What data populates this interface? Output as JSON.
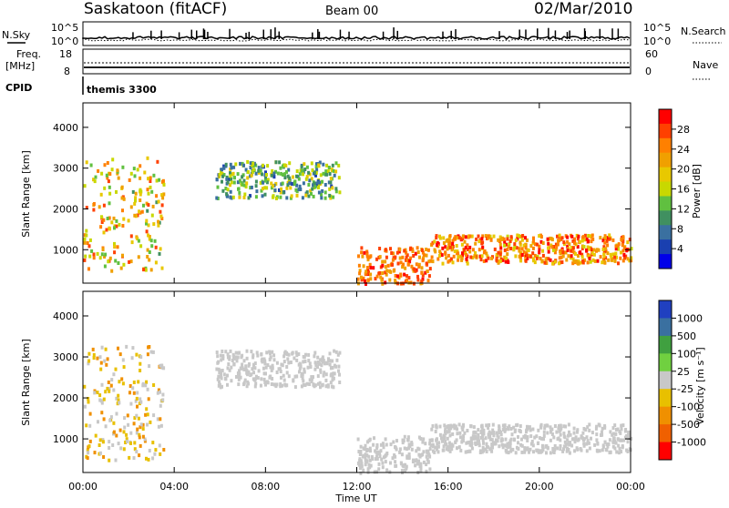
{
  "header": {
    "station": "Saskatoon (fitACF)",
    "beam": "Beam 00",
    "date": "02/Mar/2010"
  },
  "strip": {
    "nsky_label": "N.Sky",
    "nsearch_label": "N.Search",
    "noise_ticks_left": [
      "10^5",
      "10^0"
    ],
    "noise_ticks_right": [
      "10^5",
      "10^0"
    ],
    "freq_label_1": "Freq.",
    "freq_label_2": "[MHz]",
    "freq_ticks": [
      "18",
      "8"
    ],
    "nave_ticks": [
      "60",
      "0"
    ],
    "nave_label": "Nave",
    "cpid_label": "CPID",
    "cpid_value": "themis 3300"
  },
  "axes": {
    "xlabel": "Time UT",
    "xticks": [
      "00:00",
      "04:00",
      "08:00",
      "12:00",
      "16:00",
      "20:00",
      "00:00"
    ],
    "ylabel": "Slant Range [km]",
    "yticks": [
      "4000",
      "3000",
      "2000",
      "1000"
    ]
  },
  "power_scale": {
    "label": "Power [dB]",
    "ticks": [
      "28",
      "24",
      "20",
      "16",
      "12",
      "8",
      "4"
    ],
    "colors": [
      "#ff0000",
      "#ff4000",
      "#ff8000",
      "#f0a000",
      "#e8c800",
      "#c8d800",
      "#60c040",
      "#409060",
      "#3a70a0",
      "#1a40b0",
      "#0000e8"
    ]
  },
  "velocity_scale": {
    "label": "Velocity [m s⁻¹]",
    "ticks": [
      "1000",
      "500",
      "100",
      "25",
      "-25",
      "-100",
      "-500",
      "-1000"
    ],
    "colors": [
      "#2040c0",
      "#3a70a0",
      "#40a040",
      "#70d040",
      "#c8c8c8",
      "#e8c000",
      "#f09000",
      "#f06000",
      "#ff0000"
    ]
  },
  "chart_data": [
    {
      "type": "heatmap",
      "title": "Power",
      "ylabel": "Slant Range [km]",
      "xlabel": "Time UT",
      "xlim": [
        0,
        24
      ],
      "ylim": [
        180,
        4600
      ],
      "colorbar": {
        "label": "Power [dB]",
        "range": [
          0,
          30
        ],
        "ticks": [
          4,
          8,
          12,
          16,
          20,
          24,
          28
        ]
      },
      "regions": [
        {
          "t": [
            0,
            3.5
          ],
          "range_km": [
            500,
            3300
          ],
          "power_db": [
            10,
            28
          ]
        },
        {
          "t": [
            5.8,
            11.2
          ],
          "range_km": [
            2300,
            3200
          ],
          "power_db": [
            4,
            18
          ]
        },
        {
          "t": [
            12,
            15.2
          ],
          "range_km": [
            200,
            1100
          ],
          "power_db": [
            20,
            30
          ]
        },
        {
          "t": [
            15.2,
            24
          ],
          "range_km": [
            700,
            1400
          ],
          "power_db": [
            16,
            30
          ]
        }
      ]
    },
    {
      "type": "heatmap",
      "title": "Velocity",
      "ylabel": "Slant Range [km]",
      "xlabel": "Time UT",
      "xlim": [
        0,
        24
      ],
      "ylim": [
        180,
        4600
      ],
      "colorbar": {
        "label": "Velocity [m s-1]",
        "range": [
          -1000,
          1000
        ],
        "ticks": [
          1000,
          500,
          100,
          25,
          -25,
          -100,
          -500,
          -1000
        ]
      },
      "regions": [
        {
          "t": [
            0,
            3.5
          ],
          "range_km": [
            500,
            3300
          ],
          "velocity_ms": [
            -500,
            100
          ]
        },
        {
          "t": [
            5.8,
            11.2
          ],
          "range_km": [
            2300,
            3200
          ],
          "velocity_ms": [
            -25,
            25
          ]
        },
        {
          "t": [
            12,
            15.2
          ],
          "range_km": [
            200,
            1100
          ],
          "velocity_ms": [
            -100,
            100
          ]
        },
        {
          "t": [
            15.2,
            24
          ],
          "range_km": [
            700,
            1400
          ],
          "velocity_ms": [
            -25,
            25
          ]
        }
      ]
    }
  ]
}
